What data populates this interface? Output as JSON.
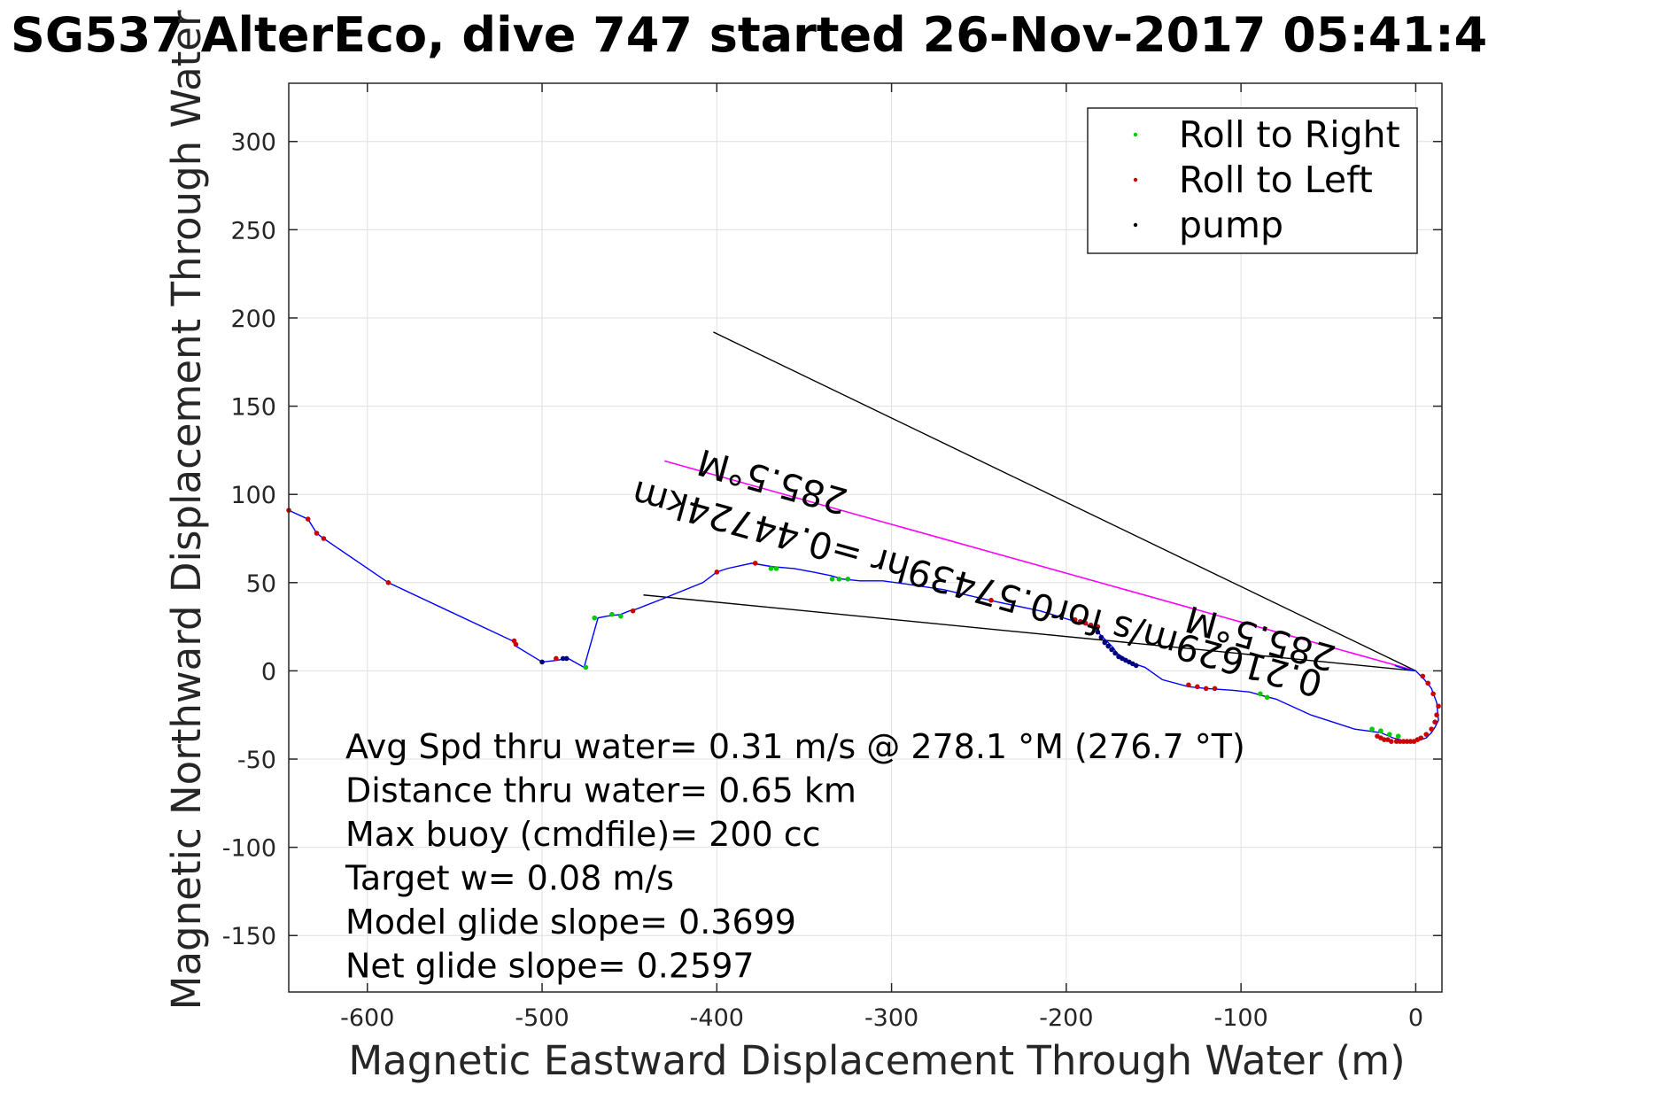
{
  "chart_data": {
    "type": "scatter",
    "title": "SG537 AlterEco, dive 747 started 26-Nov-2017 05:41:4",
    "xlabel": "Magnetic Eastward Displacement Through Water (m)",
    "ylabel": "Magnetic Northward Displacement Through Water (",
    "xlim": [
      -645,
      15
    ],
    "ylim": [
      -182,
      333
    ],
    "xticks": [
      -600,
      -500,
      -400,
      -300,
      -200,
      -100,
      0
    ],
    "yticks": [
      -150,
      -100,
      -50,
      0,
      50,
      100,
      150,
      200,
      250,
      300
    ],
    "grid": true,
    "legend_position": "top-right",
    "colors": {
      "track": "#0000ff",
      "roll_right": "#00cc00",
      "roll_left": "#cc0000",
      "pump": "#000080",
      "heading_line": "#ff00ff",
      "reference_lines": "#000000",
      "grid": "#e0e0e0"
    },
    "track": {
      "x": [
        -645,
        -634,
        -629,
        -625,
        -588,
        -517,
        -515,
        -500,
        -491,
        -487,
        -485,
        -476,
        -468,
        -463,
        -455,
        -450,
        -446,
        -428,
        -408,
        -400,
        -394,
        -380,
        -368,
        -356,
        -345,
        -335,
        -328,
        -318,
        -305,
        -290,
        -270,
        -244,
        -215,
        -195,
        -188,
        -183,
        -180,
        -177,
        -175,
        -173,
        -171,
        -168,
        -165,
        -161,
        -155,
        -145,
        -130,
        -120,
        -105,
        -95,
        -88,
        -80,
        -60,
        -35,
        -20,
        -13,
        -9,
        -6,
        -3,
        0,
        3,
        6,
        9,
        11,
        13,
        12,
        9,
        5,
        0,
        -5,
        -9,
        -12
      ],
      "y": [
        91,
        86,
        78,
        75,
        50,
        17,
        14,
        5,
        6,
        7,
        7,
        2,
        30,
        31,
        32,
        34,
        35,
        42,
        50,
        56,
        58,
        61,
        59,
        58,
        56,
        54,
        52,
        51,
        51,
        49,
        46,
        40,
        34,
        28,
        26,
        23,
        20,
        17,
        15,
        13,
        10,
        8,
        6,
        4,
        2,
        -5,
        -9,
        -10,
        -11,
        -12,
        -14,
        -16,
        -25,
        -33,
        -35,
        -38,
        -39,
        -40,
        -40,
        -40,
        -39,
        -38,
        -35,
        -32,
        -28,
        -18,
        -10,
        -5,
        0,
        1,
        2,
        3
      ]
    },
    "series": [
      {
        "name": "Roll to Right",
        "x": [
          -369,
          -366,
          -334,
          -330,
          -325,
          -470,
          -460,
          -455,
          -475,
          -183,
          -89,
          -85,
          -20,
          -15,
          -10,
          -25
        ],
        "y": [
          58,
          58,
          52,
          52,
          52,
          30,
          32,
          31,
          2,
          24,
          -13,
          -15,
          -34,
          -36,
          -37,
          -33
        ]
      },
      {
        "name": "Roll to Left",
        "x": [
          -645,
          -634,
          -629,
          -625,
          -588,
          -516,
          -515,
          -492,
          -400,
          -378,
          -448,
          -243,
          -195,
          -192,
          -189,
          -186,
          -182,
          -130,
          -125,
          -120,
          -115,
          -1,
          -3,
          -5,
          -7,
          -9,
          -11,
          -14,
          -16,
          -18,
          -20,
          -22,
          1,
          3,
          6,
          9,
          11,
          12,
          13,
          10,
          7,
          4
        ],
        "y": [
          91,
          86,
          78,
          75,
          50,
          17,
          15,
          7,
          56,
          61,
          34,
          40,
          29,
          28,
          27,
          26,
          25,
          -8,
          -9,
          -10,
          -10,
          -40,
          -40,
          -40,
          -40,
          -40,
          -40,
          -40,
          -39,
          -39,
          -38,
          -37,
          -39,
          -38,
          -36,
          -33,
          -29,
          -25,
          -20,
          -13,
          -7,
          -3
        ]
      },
      {
        "name": "pump",
        "x": [
          -500,
          -488,
          -486,
          -182,
          -180,
          -178,
          -176,
          -174,
          -172,
          -170,
          -168,
          -166,
          -164,
          -162,
          -160
        ],
        "y": [
          5,
          7,
          7,
          22,
          19,
          16,
          14,
          12,
          10,
          8,
          7,
          6,
          5,
          4,
          3
        ]
      }
    ],
    "reference_lines": [
      {
        "x": [
          -402,
          0
        ],
        "y": [
          192,
          0
        ]
      },
      {
        "x": [
          -442,
          0
        ],
        "y": [
          43,
          0
        ]
      }
    ],
    "heading_line": {
      "x": [
        -430,
        0
      ],
      "y": [
        119,
        0
      ]
    },
    "annotations": {
      "heading_far": "285.5°M",
      "heading_near": "285.5°M",
      "current_label": "0.21629m/s for0.57439hr =0.44724km"
    },
    "stats": [
      "Avg Spd thru water=  0.31 m/s @ 278.1 °M (276.7 °T)",
      "Distance thru water=  0.65 km",
      "Max buoy (cmdfile)= 200 cc",
      "Target w= 0.08 m/s",
      "Model glide slope= 0.3699",
      "Net glide slope= 0.2597"
    ]
  }
}
